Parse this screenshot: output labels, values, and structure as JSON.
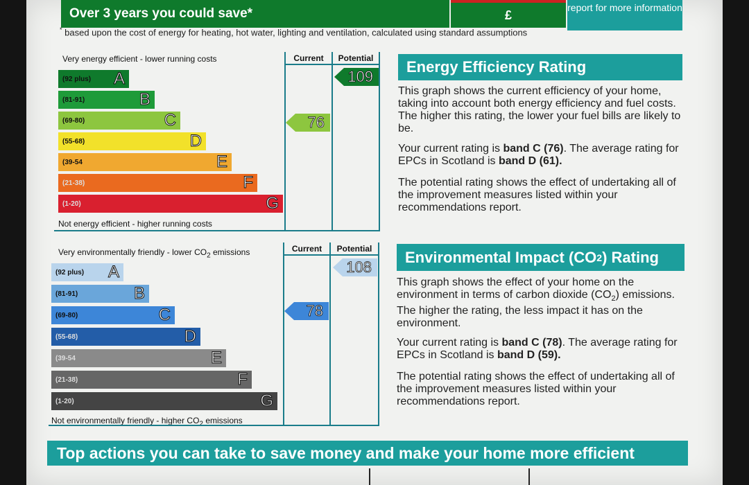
{
  "header": {
    "savings_label": "Over 3 years you could save*",
    "savings_value": "£",
    "report_link": "report for more information",
    "footnote_marker": "*",
    "footnote": "based upon the cost of energy for heating, hot water, lighting and ventilation, calculated using standard assumptions"
  },
  "energy": {
    "top_caption": "Very energy efficient - lower running costs",
    "bottom_caption": "Not energy efficient - higher running costs",
    "col_current": "Current",
    "col_potential": "Potential",
    "current_value": "76",
    "potential_value": "109",
    "current_color": "#8dc63f",
    "potential_color": "#0f7a2c",
    "bands": [
      {
        "range": "(92 plus)",
        "letter": "A",
        "color": "#0f7a2c"
      },
      {
        "range": "(81-91)",
        "letter": "B",
        "color": "#1e9b39"
      },
      {
        "range": "(69-80)",
        "letter": "C",
        "color": "#8dc63f"
      },
      {
        "range": "(55-68)",
        "letter": "D",
        "color": "#f2e12a"
      },
      {
        "range": "(39-54",
        "letter": "E",
        "color": "#f0a830"
      },
      {
        "range": "(21-38)",
        "letter": "F",
        "color": "#ea6a1f"
      },
      {
        "range": "(1-20)",
        "letter": "G",
        "color": "#d9202f"
      }
    ],
    "title": "Energy Efficiency Rating",
    "para1": "This graph shows the current efficiency of your home, taking into account both energy efficiency and fuel costs. The higher this rating, the lower your fuel bills are likely to be.",
    "para2_a": "Your current rating is ",
    "para2_b": "band C (76)",
    "para2_c": ". The average rating for EPCs in Scotland is ",
    "para2_d": "band D (61).",
    "para3": "The potential rating shows the effect of undertaking all of the improvement measures listed within your recommendations report."
  },
  "environment": {
    "top_caption_a": "Very environmentally friendly - lower CO",
    "top_caption_sub": "2",
    "top_caption_b": " emissions",
    "bottom_caption_a": "Not environmentally friendly - higher CO",
    "bottom_caption_sub": "2",
    "bottom_caption_b": " emissions",
    "col_current": "Current",
    "col_potential": "Potential",
    "current_value": "78",
    "potential_value": "108",
    "current_color": "#3d86d8",
    "potential_color": "#b9d4ec",
    "bands": [
      {
        "range": "(92 plus)",
        "letter": "A",
        "color": "#b9d4ec"
      },
      {
        "range": "(81-91)",
        "letter": "B",
        "color": "#6aa6da"
      },
      {
        "range": "(69-80)",
        "letter": "C",
        "color": "#3d86d8"
      },
      {
        "range": "(55-68)",
        "letter": "D",
        "color": "#235da8"
      },
      {
        "range": "(39-54",
        "letter": "E",
        "color": "#8a8a8a"
      },
      {
        "range": "(21-38)",
        "letter": "F",
        "color": "#666666"
      },
      {
        "range": "(1-20)",
        "letter": "G",
        "color": "#444444"
      }
    ],
    "title_a": "Environmental Impact (CO",
    "title_sub": "2",
    "title_b": ") Rating",
    "para1_a": "This graph shows the effect of your home on the environment in terms of carbon dioxide (CO",
    "para1_sub": "2",
    "para1_b": ") emissions. The higher the rating, the less impact it has on the environment.",
    "para2_a": "Your current rating is ",
    "para2_b": "band C (78)",
    "para2_c": ". The average rating for EPCs in Scotland is ",
    "para2_d": "band D (59).",
    "para3": "The potential rating shows the effect of undertaking all of the improvement measures listed within your recommendations report."
  },
  "bottom": {
    "banner": "Top actions you can take to save money and make your home more efficient"
  }
}
